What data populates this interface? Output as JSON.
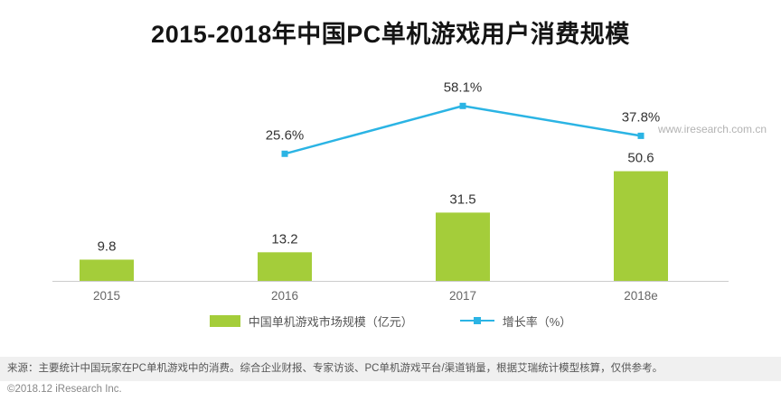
{
  "header": {
    "title": "2015-2018年中国PC单机游戏用户消费规模",
    "watermark": "www.iresearch.com.cn"
  },
  "chart_data": {
    "type": "bar+line",
    "title": "2015-2018年中国PC单机游戏用户消费规模",
    "categories": [
      "2015",
      "2016",
      "2017",
      "2018e"
    ],
    "series": [
      {
        "name": "中国单机游戏市场规模（亿元）",
        "type": "bar",
        "color": "#a4cd3a",
        "values": [
          9.8,
          13.2,
          31.5,
          50.6
        ],
        "value_labels": [
          "9.8",
          "13.2",
          "31.5",
          "50.6"
        ]
      },
      {
        "name": "增长率（%）",
        "type": "line",
        "color": "#2bb4e4",
        "values": [
          null,
          25.6,
          58.1,
          37.8
        ],
        "value_labels": [
          "",
          "25.6%",
          "58.1%",
          "37.8%"
        ]
      }
    ],
    "xlabel": "",
    "ylabel": "",
    "bar_axis_range": [
      0,
      55
    ],
    "line_axis_range": [
      0,
      65
    ],
    "grid": false,
    "legend_position": "bottom"
  },
  "legend": {
    "bar_label": "中国单机游戏市场规模（亿元）",
    "line_label": "增长率（%）"
  },
  "footer": {
    "source": "来源：主要统计中国玩家在PC单机游戏中的消费。综合企业财报、专家访谈、PC单机游戏平台/渠道销量，根据艾瑞统计模型核算，仅供参考。",
    "copyright": "©2018.12 iResearch Inc."
  }
}
